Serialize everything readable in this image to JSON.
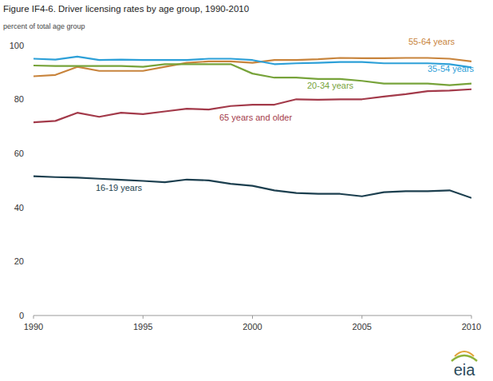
{
  "chart_data": {
    "type": "line",
    "title": "Figure IF4-6. Driver licensing rates by age group, 1990-2010",
    "y_label": "percent of total age group",
    "logo_text": "eia",
    "x": [
      1990,
      1991,
      1992,
      1993,
      1994,
      1995,
      1996,
      1997,
      1998,
      1999,
      2000,
      2001,
      2002,
      2003,
      2004,
      2005,
      2006,
      2007,
      2008,
      2009,
      2010
    ],
    "xlim": [
      1990,
      2010
    ],
    "xticks": [
      1990,
      1995,
      2000,
      2005,
      2010
    ],
    "ylim": [
      0,
      100
    ],
    "yticks": [
      0,
      20,
      40,
      60,
      80,
      100
    ],
    "grid": false,
    "series": [
      {
        "name": "55-64 years",
        "color": "#c8843c",
        "values": [
          88.5,
          89,
          92,
          90.5,
          90.5,
          90.5,
          92,
          93.5,
          94,
          94,
          93.5,
          94.5,
          94.5,
          94.8,
          95.3,
          95.2,
          95.2,
          95.3,
          95.3,
          95,
          94
        ]
      },
      {
        "name": "35-54 years",
        "color": "#2da0d8",
        "values": [
          95,
          94.7,
          95.8,
          94.5,
          94.7,
          94.5,
          94.5,
          94.5,
          95,
          95,
          94.5,
          93,
          93.3,
          93.5,
          93.8,
          93.8,
          93.3,
          93.3,
          93.3,
          93,
          91.8
        ]
      },
      {
        "name": "20-34 years",
        "color": "#77a33a",
        "values": [
          92.5,
          92.3,
          92.3,
          92.3,
          92.3,
          92,
          93,
          93,
          93,
          93,
          89.5,
          88,
          88,
          87.5,
          87.5,
          86.8,
          85.8,
          85.8,
          85.8,
          85.2,
          85.8
        ]
      },
      {
        "name": "65 years and older",
        "color": "#a33a4a",
        "values": [
          71.5,
          72,
          75,
          73.5,
          75,
          74.5,
          75.5,
          76.5,
          76.2,
          77.5,
          78,
          78,
          80,
          79.8,
          80,
          80,
          81,
          81.9,
          83,
          83.2,
          83.7
        ]
      },
      {
        "name": "16-19 years",
        "color": "#1c3f4f",
        "values": [
          51.5,
          51.2,
          51,
          50.6,
          50.2,
          49.8,
          49.3,
          50.3,
          50,
          48.7,
          48,
          46.3,
          45.3,
          45,
          45,
          44.1,
          45.6,
          46,
          46,
          46.3,
          43.5
        ]
      }
    ]
  }
}
